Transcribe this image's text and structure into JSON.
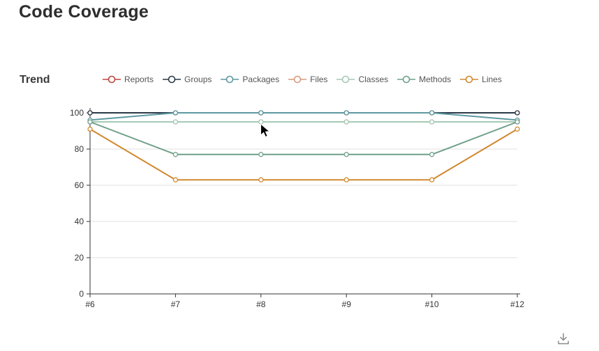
{
  "page": {
    "title": "Code Coverage"
  },
  "trend": {
    "title": "Trend"
  },
  "export": {
    "icon": "download-icon"
  },
  "cursor": {
    "icon": "mouse-pointer"
  },
  "chart_data": {
    "type": "line",
    "title": "Trend",
    "categories": [
      "#6",
      "#7",
      "#8",
      "#9",
      "#10",
      "#12"
    ],
    "series": [
      {
        "name": "Reports",
        "color": "#bf4440",
        "values": [
          100,
          100,
          100,
          100,
          100,
          100
        ]
      },
      {
        "name": "Groups",
        "color": "#2a3947",
        "values": [
          100,
          100,
          100,
          100,
          100,
          100
        ]
      },
      {
        "name": "Packages",
        "color": "#5d99a2",
        "values": [
          96,
          100,
          100,
          100,
          100,
          96
        ]
      },
      {
        "name": "Files",
        "color": "#d59a7e",
        "values": [
          95,
          95,
          95,
          95,
          95,
          95
        ]
      },
      {
        "name": "Classes",
        "color": "#a5c9b4",
        "values": [
          95,
          95,
          95,
          95,
          95,
          95
        ]
      },
      {
        "name": "Methods",
        "color": "#6f9f88",
        "values": [
          95,
          77,
          77,
          77,
          77,
          95
        ]
      },
      {
        "name": "Lines",
        "color": "#d2882e",
        "values": [
          91,
          63,
          63,
          63,
          63,
          91
        ]
      }
    ],
    "xlabel": "",
    "ylabel": "",
    "ylim": [
      0,
      100
    ],
    "yticks": [
      0,
      20,
      40,
      60,
      80,
      100
    ],
    "grid": true,
    "legend_position": "top",
    "marker": "circle-open",
    "axis_color": "#333333",
    "grid_color": "#e0e0e0"
  }
}
